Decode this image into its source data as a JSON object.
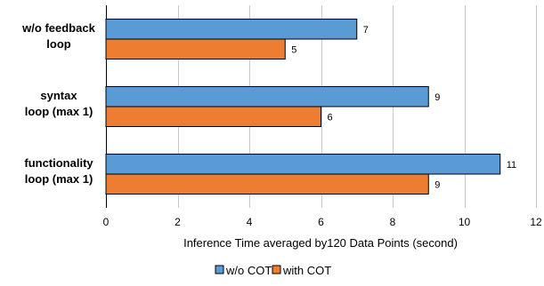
{
  "chart_data": {
    "type": "bar",
    "orientation": "horizontal",
    "categories": [
      [
        "w/o feedback",
        "loop"
      ],
      [
        "syntax",
        "loop (max 1)"
      ],
      [
        "functionality",
        "loop (max 1)"
      ]
    ],
    "series": [
      {
        "name": "w/o COT",
        "values": [
          7,
          9,
          11
        ],
        "color": "#5b9bd5"
      },
      {
        "name": "with COT",
        "values": [
          5,
          6,
          9
        ],
        "color": "#ed7d31"
      }
    ],
    "xlabel": "Inference Time averaged by120 Data Points (second)",
    "ylabel": "",
    "xlim": [
      0,
      12
    ],
    "xticks": [
      0,
      2,
      4,
      6,
      8,
      10,
      12
    ],
    "grid": true,
    "legend_position": "bottom-center",
    "data_labels": true,
    "bar_edge_color": "#000000"
  }
}
